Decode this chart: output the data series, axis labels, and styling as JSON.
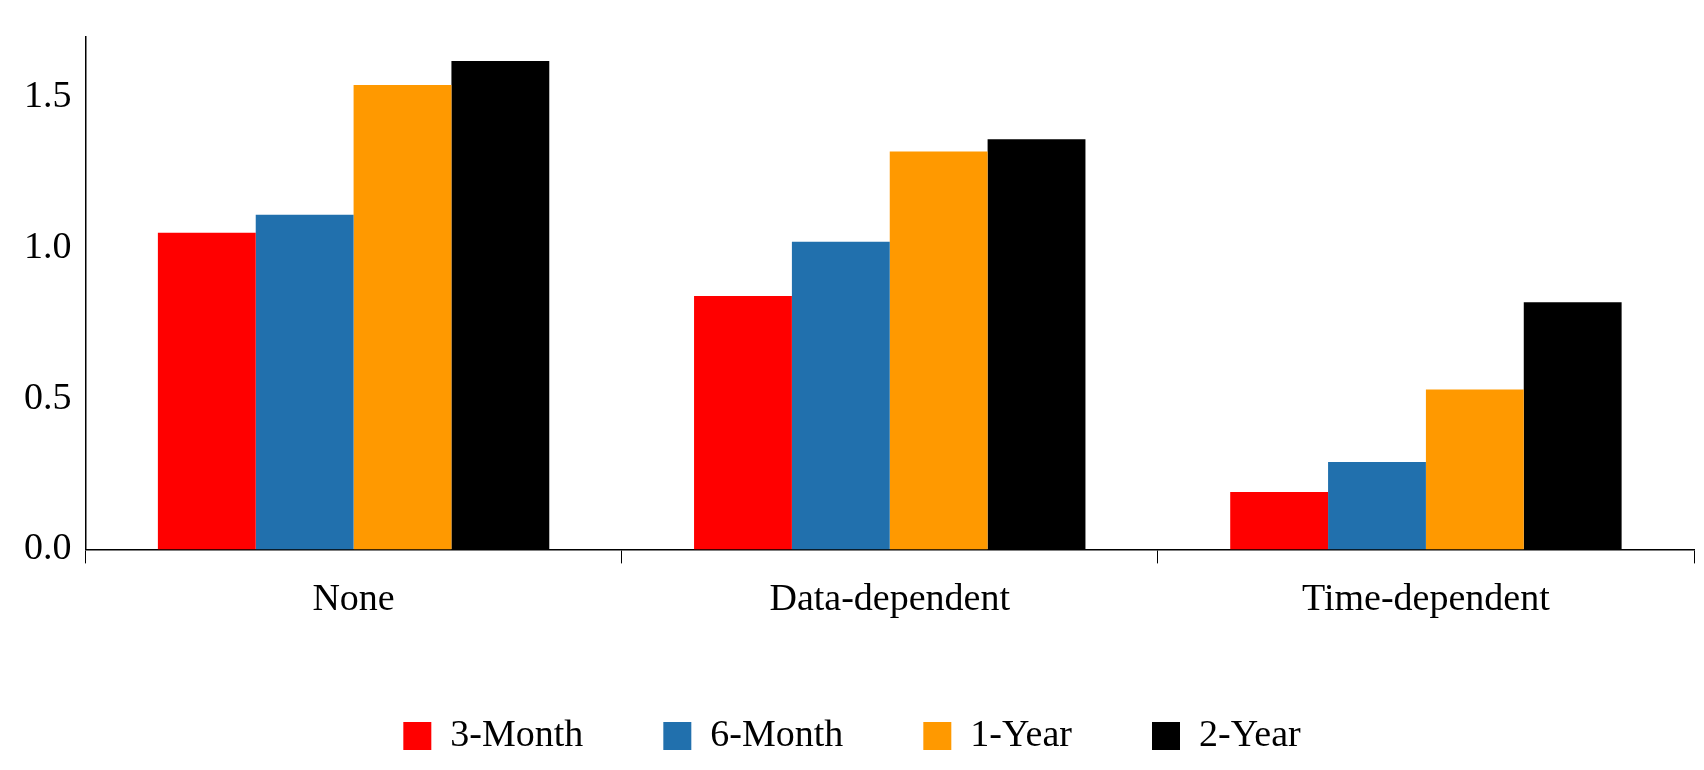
{
  "chart_data": {
    "type": "bar",
    "categories": [
      "None",
      "Data-dependent",
      "Time-dependent"
    ],
    "series": [
      {
        "name": "3-Month",
        "color": "#ff0000",
        "values": [
          1.05,
          0.84,
          0.19
        ]
      },
      {
        "name": "6-Month",
        "color": "#2170ad",
        "values": [
          1.11,
          1.02,
          0.29
        ]
      },
      {
        "name": "1-Year",
        "color": "#ff9900",
        "values": [
          1.54,
          1.32,
          0.53
        ]
      },
      {
        "name": "2-Year",
        "color": "#000000",
        "values": [
          1.62,
          1.36,
          0.82
        ]
      }
    ],
    "ylim": [
      0,
      1.7
    ],
    "yticks": [
      {
        "value": 0,
        "label": "0.0"
      },
      1.5,
      {
        "value": 1,
        "label": "1.0"
      },
      0.5
    ],
    "legend": "bottom"
  }
}
